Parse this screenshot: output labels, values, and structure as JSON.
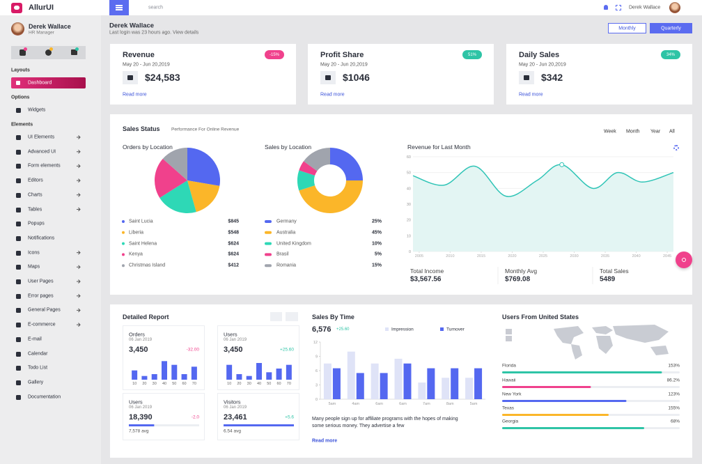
{
  "topbar": {
    "brand": "AllurUI",
    "search": "search",
    "user": "Derek Wallace"
  },
  "sidebar": {
    "name": "Derek Wallace",
    "role": "HR Manager",
    "sections": [
      {
        "title": "Layouts",
        "items": [
          {
            "label": "Dashboard",
            "active": true
          }
        ]
      },
      {
        "title": "Options",
        "items": [
          {
            "label": "Widgets"
          }
        ]
      },
      {
        "title": "Elements",
        "items": [
          {
            "label": "UI Elements",
            "submenu": true
          },
          {
            "label": "Advanced UI",
            "submenu": true
          },
          {
            "label": "Form elements",
            "submenu": true
          },
          {
            "label": "Editors",
            "submenu": true
          },
          {
            "label": "Charts",
            "submenu": true
          },
          {
            "label": "Tables",
            "submenu": true
          },
          {
            "label": "Popups"
          },
          {
            "label": "Notifications"
          },
          {
            "label": "Icons",
            "submenu": true
          },
          {
            "label": "Maps",
            "submenu": true
          },
          {
            "label": "User Pages",
            "submenu": true
          },
          {
            "label": "Error pages",
            "submenu": true
          },
          {
            "label": "General Pages",
            "submenu": true
          },
          {
            "label": "E-commerce",
            "submenu": true
          },
          {
            "label": "E-mail"
          },
          {
            "label": "Calendar"
          },
          {
            "label": "Todo List"
          },
          {
            "label": "Gallery"
          },
          {
            "label": "Documentation"
          }
        ]
      }
    ]
  },
  "header": {
    "name": "Derek Wallace",
    "last_login": "Last login was 23 hours ago. View details",
    "buttons": [
      "Monthly",
      "Quarterly"
    ]
  },
  "stat_cards": [
    {
      "title": "Revenue",
      "badge": "-15%",
      "badge_color": "#f0418c",
      "date": "May 20 - Jun 20,2019",
      "value": "$24,583",
      "link": "Read more"
    },
    {
      "title": "Profit Share",
      "badge": "51%",
      "badge_color": "#2ec4a6",
      "date": "May 20 - Jun 20,2019",
      "value": "$1046",
      "link": "Read more"
    },
    {
      "title": "Daily Sales",
      "badge": "34%",
      "badge_color": "#2ec4a6",
      "date": "May 20 - Jun 20,2019",
      "value": "$342",
      "link": "Read more"
    }
  ],
  "sales_status": {
    "title": "Sales Status",
    "subtitle": "Performance For Online Revenue",
    "filters": [
      "Week",
      "Month",
      "Year",
      "All"
    ],
    "orders_by_location": {
      "type": "pie",
      "title": "Orders by Location",
      "categories": [
        "Saint Lucia",
        "Liberia",
        "Saint Helena",
        "Kenya",
        "Christmas Island"
      ],
      "values": [
        845,
        548,
        624,
        624,
        412
      ],
      "value_labels": [
        "$845",
        "$548",
        "$624",
        "$624",
        "$412"
      ],
      "colors": [
        "#5468f0",
        "#fbb629",
        "#2ed8b6",
        "#f0418c",
        "#a0a4ad"
      ]
    },
    "sales_by_location": {
      "type": "donut",
      "title": "Sales by Location",
      "categories": [
        "Germany",
        "Australia",
        "United Kingdom",
        "Brasil",
        "Romania"
      ],
      "values": [
        25,
        45,
        10,
        5,
        15
      ],
      "value_labels": [
        "25%",
        "45%",
        "10%",
        "5%",
        "15%"
      ],
      "colors": [
        "#5468f0",
        "#fbb629",
        "#2ed8b6",
        "#f0418c",
        "#a0a4ad"
      ]
    },
    "revenue": {
      "type": "line",
      "title": "Revenue for Last Month",
      "color": "#2ec4b6",
      "x": [
        2004,
        2009,
        2014,
        2019,
        2024,
        2028,
        2033,
        2037,
        2041,
        2046
      ],
      "values": [
        48,
        42,
        54,
        35,
        45,
        55,
        40,
        50,
        44,
        50
      ],
      "xlim": [
        2004,
        2046
      ],
      "xticks": [
        2005,
        2010,
        2015,
        2020,
        2025,
        2030,
        2035,
        2040,
        2045
      ],
      "ylim": [
        0,
        60
      ],
      "yticks": [
        0,
        10,
        20,
        30,
        40,
        50,
        60
      ]
    },
    "summary": [
      {
        "label": "Total Income",
        "value": "$3,567.56"
      },
      {
        "label": "Monthly Avg",
        "value": "$769.08"
      },
      {
        "label": "Total Sales",
        "value": "5489"
      }
    ]
  },
  "detailed_report": {
    "title": "Detailed Report",
    "tiles": [
      {
        "label": "Orders",
        "date": "06 Jan 2019",
        "value": "3,450",
        "change": "-32.00",
        "change_color": "#f0418c",
        "chart": {
          "type": "bar",
          "categories": [
            "10",
            "20",
            "30",
            "40",
            "50",
            "60",
            "70"
          ],
          "values": [
            2.5,
            1,
            1.5,
            5,
            4,
            1.5,
            3.5
          ],
          "ylim": [
            0,
            6
          ]
        }
      },
      {
        "label": "Users",
        "date": "06 Jan 2019",
        "value": "3,450",
        "change": "+25.60",
        "change_color": "#2ec4a6",
        "chart": {
          "type": "bar",
          "categories": [
            "10",
            "20",
            "30",
            "40",
            "50",
            "60",
            "70"
          ],
          "values": [
            4,
            1.5,
            1,
            4.5,
            2,
            3,
            4
          ],
          "ylim": [
            0,
            6
          ]
        }
      },
      {
        "label": "Users",
        "date": "06 Jan 2019",
        "value": "18,390",
        "change": "-2.0",
        "change_color": "#f0418c",
        "progress": 36,
        "footer": "7,578 avg"
      },
      {
        "label": "Visitors",
        "date": "06 Jan 2019",
        "value": "23,461",
        "change": "+5.6",
        "change_color": "#2ec4a6",
        "progress": 100,
        "footer": "6.54 avg"
      }
    ]
  },
  "sales_by_time": {
    "title": "Sales By Time",
    "value": "6,576",
    "change": "+25.60",
    "chart": {
      "type": "bar",
      "categories": [
        "5am",
        "4am",
        "6am",
        "6am",
        "7am",
        "8am",
        "5am"
      ],
      "series": [
        {
          "name": "Impression",
          "color": "#dfe3f7",
          "values": [
            7.5,
            10,
            7.5,
            8.5,
            3.5,
            4.5,
            4.5
          ]
        },
        {
          "name": "Turnover",
          "color": "#5468f0",
          "values": [
            6.5,
            5.5,
            5.5,
            7.5,
            6.5,
            6.5,
            6.5
          ]
        }
      ],
      "ylim": [
        0,
        12
      ],
      "yticks": [
        0,
        3,
        6,
        9,
        12
      ]
    },
    "text": "Many people sign up for affiliate programs with the hopes of making some serious money. They advertise a few",
    "link": "Read more"
  },
  "users_us": {
    "title": "Users From United States",
    "rows": [
      {
        "name": "Florida",
        "value": 153,
        "value_label": "153%",
        "progress": 90,
        "color": "#2ec4a6"
      },
      {
        "name": "Hawaii",
        "value": 86.2,
        "value_label": "86.2%",
        "progress": 50,
        "color": "#f0418c"
      },
      {
        "name": "New York",
        "value": 123,
        "value_label": "123%",
        "progress": 70,
        "color": "#5468f0"
      },
      {
        "name": "Texas",
        "value": 155,
        "value_label": "155%",
        "progress": 60,
        "color": "#fbb629"
      },
      {
        "name": "Georgia",
        "value": 68,
        "value_label": "68%",
        "progress": 80,
        "color": "#2ec4a6"
      }
    ]
  }
}
